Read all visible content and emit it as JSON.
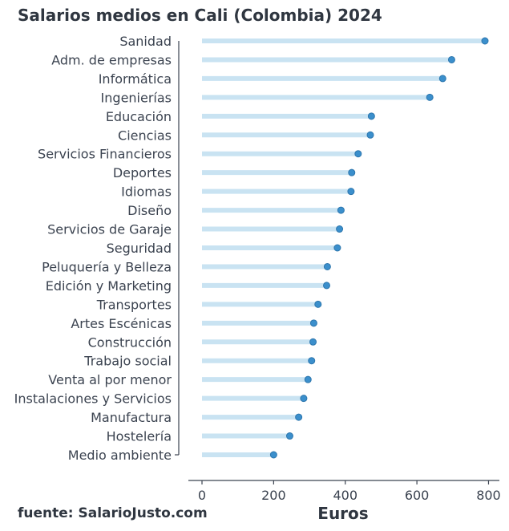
{
  "chart_data": {
    "type": "dot",
    "title": "Salarios medios en Cali (Colombia) 2024",
    "xlabel": "Euros",
    "ylabel": "",
    "xlim": [
      -40,
      830
    ],
    "xticks": [
      0,
      200,
      400,
      600,
      800
    ],
    "grid": false,
    "source": "fuente: SalarioJusto.com",
    "colors": {
      "bar": "#c9e3f2",
      "dot": "#3b8fcc",
      "dot_edge": "#2d76ad",
      "axis": "#3b4350"
    },
    "categories": [
      "Sanidad",
      "Adm. de empresas",
      "Informática",
      "Ingenierías",
      "Educación",
      "Ciencias",
      "Servicios Financieros",
      "Deportes",
      "Idiomas",
      "Diseño",
      "Servicios de Garaje",
      "Seguridad",
      "Peluquería y Belleza",
      "Edición y Marketing",
      "Transportes",
      "Artes Escénicas",
      "Construcción",
      "Trabajo social",
      "Venta al por menor",
      "Instalaciones y Servicios",
      "Manufactura",
      "Hostelería",
      "Medio ambiente"
    ],
    "values": [
      790,
      697,
      672,
      636,
      473,
      470,
      436,
      418,
      416,
      388,
      384,
      378,
      350,
      348,
      324,
      312,
      310,
      306,
      296,
      284,
      270,
      245,
      200
    ]
  }
}
